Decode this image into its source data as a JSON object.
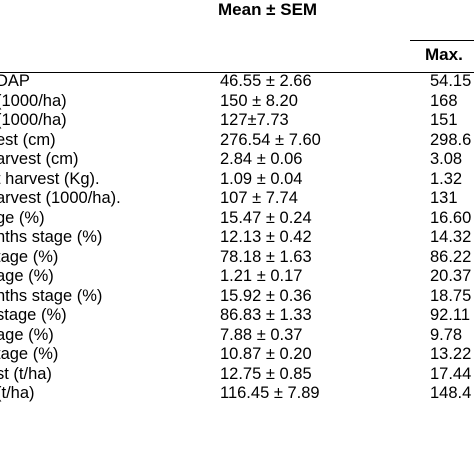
{
  "header": {
    "mean_sem": "Mean ± SEM",
    "max": "Max."
  },
  "rows": [
    {
      "param": "DAP",
      "mean": "46.55 ±  2.66",
      "max": "54.15"
    },
    {
      "param": "(1000/ha)",
      "mean": "150 ± 8.20",
      "max": "168"
    },
    {
      "param": "(1000/ha)",
      "mean": "127±7.73",
      "max": "151"
    },
    {
      "param": "est (cm)",
      "mean": "276.54 ± 7.60",
      "max": "298.6"
    },
    {
      "param": "arvest (cm)",
      "mean": "2.84 ± 0.06",
      "max": "3.08"
    },
    {
      "param": "t harvest (Kg).",
      "mean": "1.09 ± 0.04",
      "max": "1.32"
    },
    {
      "param": "arvest (1000/ha).",
      "mean": "107 ± 7.74",
      "max": "131"
    },
    {
      "param": "ge (%)",
      "mean": "15.47 ± 0.24",
      "max": "16.60"
    },
    {
      "param": "nths stage (%)",
      "mean": "12.13 ± 0.42",
      "max": "14.32"
    },
    {
      "param": "tage (%)",
      "mean": "78.18 ± 1.63",
      "max": "86.22"
    },
    {
      "param": "age (%)",
      "mean": "1.21 ± 0.17",
      "max": "20.37"
    },
    {
      "param": "nths stage (%)",
      "mean": "15.92 ± 0.36",
      "max": "18.75"
    },
    {
      "param": "stage (%)",
      "mean": "86.83 ± 1.33",
      "max": "92.11"
    },
    {
      "param": "age (%)",
      "mean": "7.88 ± 0.37",
      "max": "9.78"
    },
    {
      "param": "tage (%)",
      "mean": "10.87 ± 0.20",
      "max": "13.22"
    },
    {
      "param": "st (t/ha)",
      "mean": "12.75 ± 0.85",
      "max": "17.44"
    },
    {
      "param": "(t/ha)",
      "mean": "116.45 ± 7.89",
      "max": "148.4"
    }
  ]
}
